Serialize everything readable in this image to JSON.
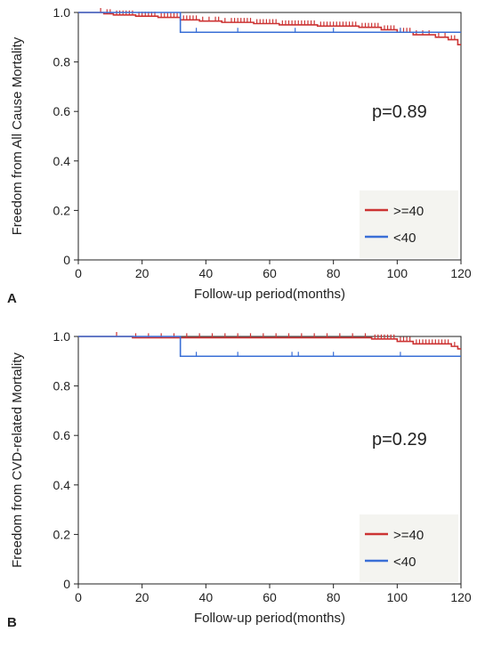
{
  "colors": {
    "ge40": "#cc3333",
    "lt40": "#3a6fd6",
    "legend_bg": "#f4f4f0",
    "frame": "#222222"
  },
  "chart_data": [
    {
      "type": "line",
      "panel_label": "A",
      "xlabel": "Follow-up period(months)",
      "ylabel": "Freedom from All Cause Mortality",
      "xlim": [
        0,
        120
      ],
      "ylim": [
        0,
        1.0
      ],
      "x_ticks": [
        "0",
        "20",
        "40",
        "60",
        "80",
        "100",
        "120"
      ],
      "y_ticks": [
        "0",
        "0.2",
        "0.4",
        "0.6",
        "0.8",
        "1.0"
      ],
      "annotation": "p=0.89",
      "legend_position": "bottom-right",
      "grid": false,
      "series": [
        {
          "name": ">=40",
          "color": "#cc3333",
          "steps": [
            [
              0,
              1.0
            ],
            [
              8,
              0.995
            ],
            [
              11,
              0.99
            ],
            [
              18,
              0.985
            ],
            [
              25,
              0.98
            ],
            [
              32,
              0.97
            ],
            [
              38,
              0.965
            ],
            [
              45,
              0.96
            ],
            [
              55,
              0.955
            ],
            [
              63,
              0.95
            ],
            [
              75,
              0.945
            ],
            [
              88,
              0.94
            ],
            [
              95,
              0.93
            ],
            [
              100,
              0.92
            ],
            [
              105,
              0.91
            ],
            [
              112,
              0.9
            ],
            [
              116,
              0.89
            ],
            [
              119,
              0.87
            ],
            [
              120,
              0.87
            ]
          ],
          "censor_x": [
            7,
            9,
            10,
            12,
            13,
            14,
            15,
            16,
            17,
            19,
            20,
            21,
            22,
            23,
            24,
            26,
            27,
            28,
            29,
            30,
            31,
            33,
            34,
            35,
            36,
            37,
            39,
            41,
            43,
            44,
            46,
            48,
            49,
            50,
            51,
            52,
            53,
            54,
            56,
            57,
            58,
            59,
            60,
            61,
            62,
            64,
            65,
            66,
            67,
            68,
            69,
            70,
            71,
            72,
            73,
            74,
            76,
            77,
            78,
            79,
            80,
            81,
            82,
            83,
            84,
            85,
            86,
            87,
            89,
            90,
            91,
            92,
            93,
            94,
            96,
            97,
            98,
            99,
            101,
            102,
            103,
            104,
            106,
            108,
            110,
            113,
            115,
            117,
            118
          ]
        },
        {
          "name": "<40",
          "color": "#3a6fd6",
          "steps": [
            [
              0,
              1.0
            ],
            [
              32,
              0.92
            ],
            [
              120,
              0.92
            ]
          ],
          "censor_x": [
            37,
            50,
            68,
            80,
            101
          ]
        }
      ]
    },
    {
      "type": "line",
      "panel_label": "B",
      "xlabel": "Follow-up period(months)",
      "ylabel": "Freedom from CVD-related Mortality",
      "xlim": [
        0,
        120
      ],
      "ylim": [
        0,
        1.0
      ],
      "x_ticks": [
        "0",
        "20",
        "40",
        "60",
        "80",
        "100",
        "120"
      ],
      "y_ticks": [
        "0",
        "0.2",
        "0.4",
        "0.6",
        "0.8",
        "1.0"
      ],
      "annotation": "p=0.29",
      "legend_position": "bottom-right",
      "grid": false,
      "series": [
        {
          "name": ">=40",
          "color": "#cc3333",
          "steps": [
            [
              0,
              1.0
            ],
            [
              17,
              0.995
            ],
            [
              92,
              0.99
            ],
            [
              100,
              0.98
            ],
            [
              105,
              0.97
            ],
            [
              117,
              0.96
            ],
            [
              119,
              0.95
            ],
            [
              120,
              0.95
            ]
          ],
          "censor_x": [
            12,
            18,
            22,
            26,
            30,
            34,
            38,
            42,
            46,
            50,
            54,
            58,
            62,
            66,
            70,
            74,
            78,
            82,
            86,
            90,
            93,
            94,
            95,
            96,
            97,
            98,
            99,
            101,
            102,
            103,
            104,
            106,
            107,
            108,
            109,
            110,
            111,
            112,
            113,
            114,
            115,
            116,
            118
          ]
        },
        {
          "name": "<40",
          "color": "#3a6fd6",
          "steps": [
            [
              0,
              1.0
            ],
            [
              32,
              0.92
            ],
            [
              120,
              0.92
            ]
          ],
          "censor_x": [
            37,
            50,
            67,
            69,
            80,
            101
          ]
        }
      ]
    }
  ]
}
